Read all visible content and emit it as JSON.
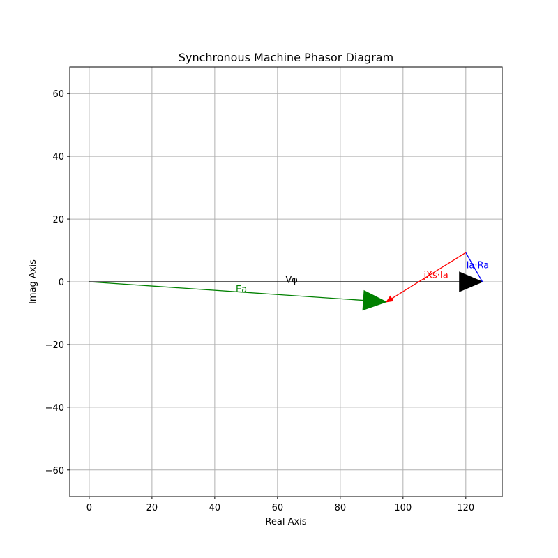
{
  "chart_data": {
    "type": "phasor",
    "title": "Synchronous Machine Phasor Diagram",
    "xlabel": "Real Axis",
    "ylabel": "Imag Axis",
    "xlim": [
      -6.2,
      131.6
    ],
    "ylim": [
      -68.5,
      68.5
    ],
    "xticks": [
      0,
      20,
      40,
      60,
      80,
      100,
      120
    ],
    "yticks": [
      -60,
      -40,
      -20,
      0,
      20,
      40,
      60
    ],
    "grid": true,
    "vectors": [
      {
        "label": "Vφ",
        "start": [
          0,
          0
        ],
        "end": [
          125.3,
          0
        ],
        "color": "#000000",
        "head": "large",
        "label_at": [
          64.5,
          0.8
        ]
      },
      {
        "label": "Ea",
        "start": [
          0,
          0
        ],
        "end": [
          94.7,
          -6.4
        ],
        "color": "#008000",
        "head": "large",
        "label_at": [
          48.5,
          -2.2
        ]
      },
      {
        "label": "Ia·Ra",
        "start": [
          120,
          9.3
        ],
        "end": [
          125.3,
          0
        ],
        "color": "#0000ff",
        "head": "none",
        "label_at": [
          123.8,
          5.5
        ]
      },
      {
        "label": "jXs·Ia",
        "start": [
          120,
          9.3
        ],
        "end": [
          94.7,
          -6.4
        ],
        "color": "#ff0000",
        "head": "small",
        "label_at": [
          110.5,
          2.3
        ]
      }
    ]
  }
}
